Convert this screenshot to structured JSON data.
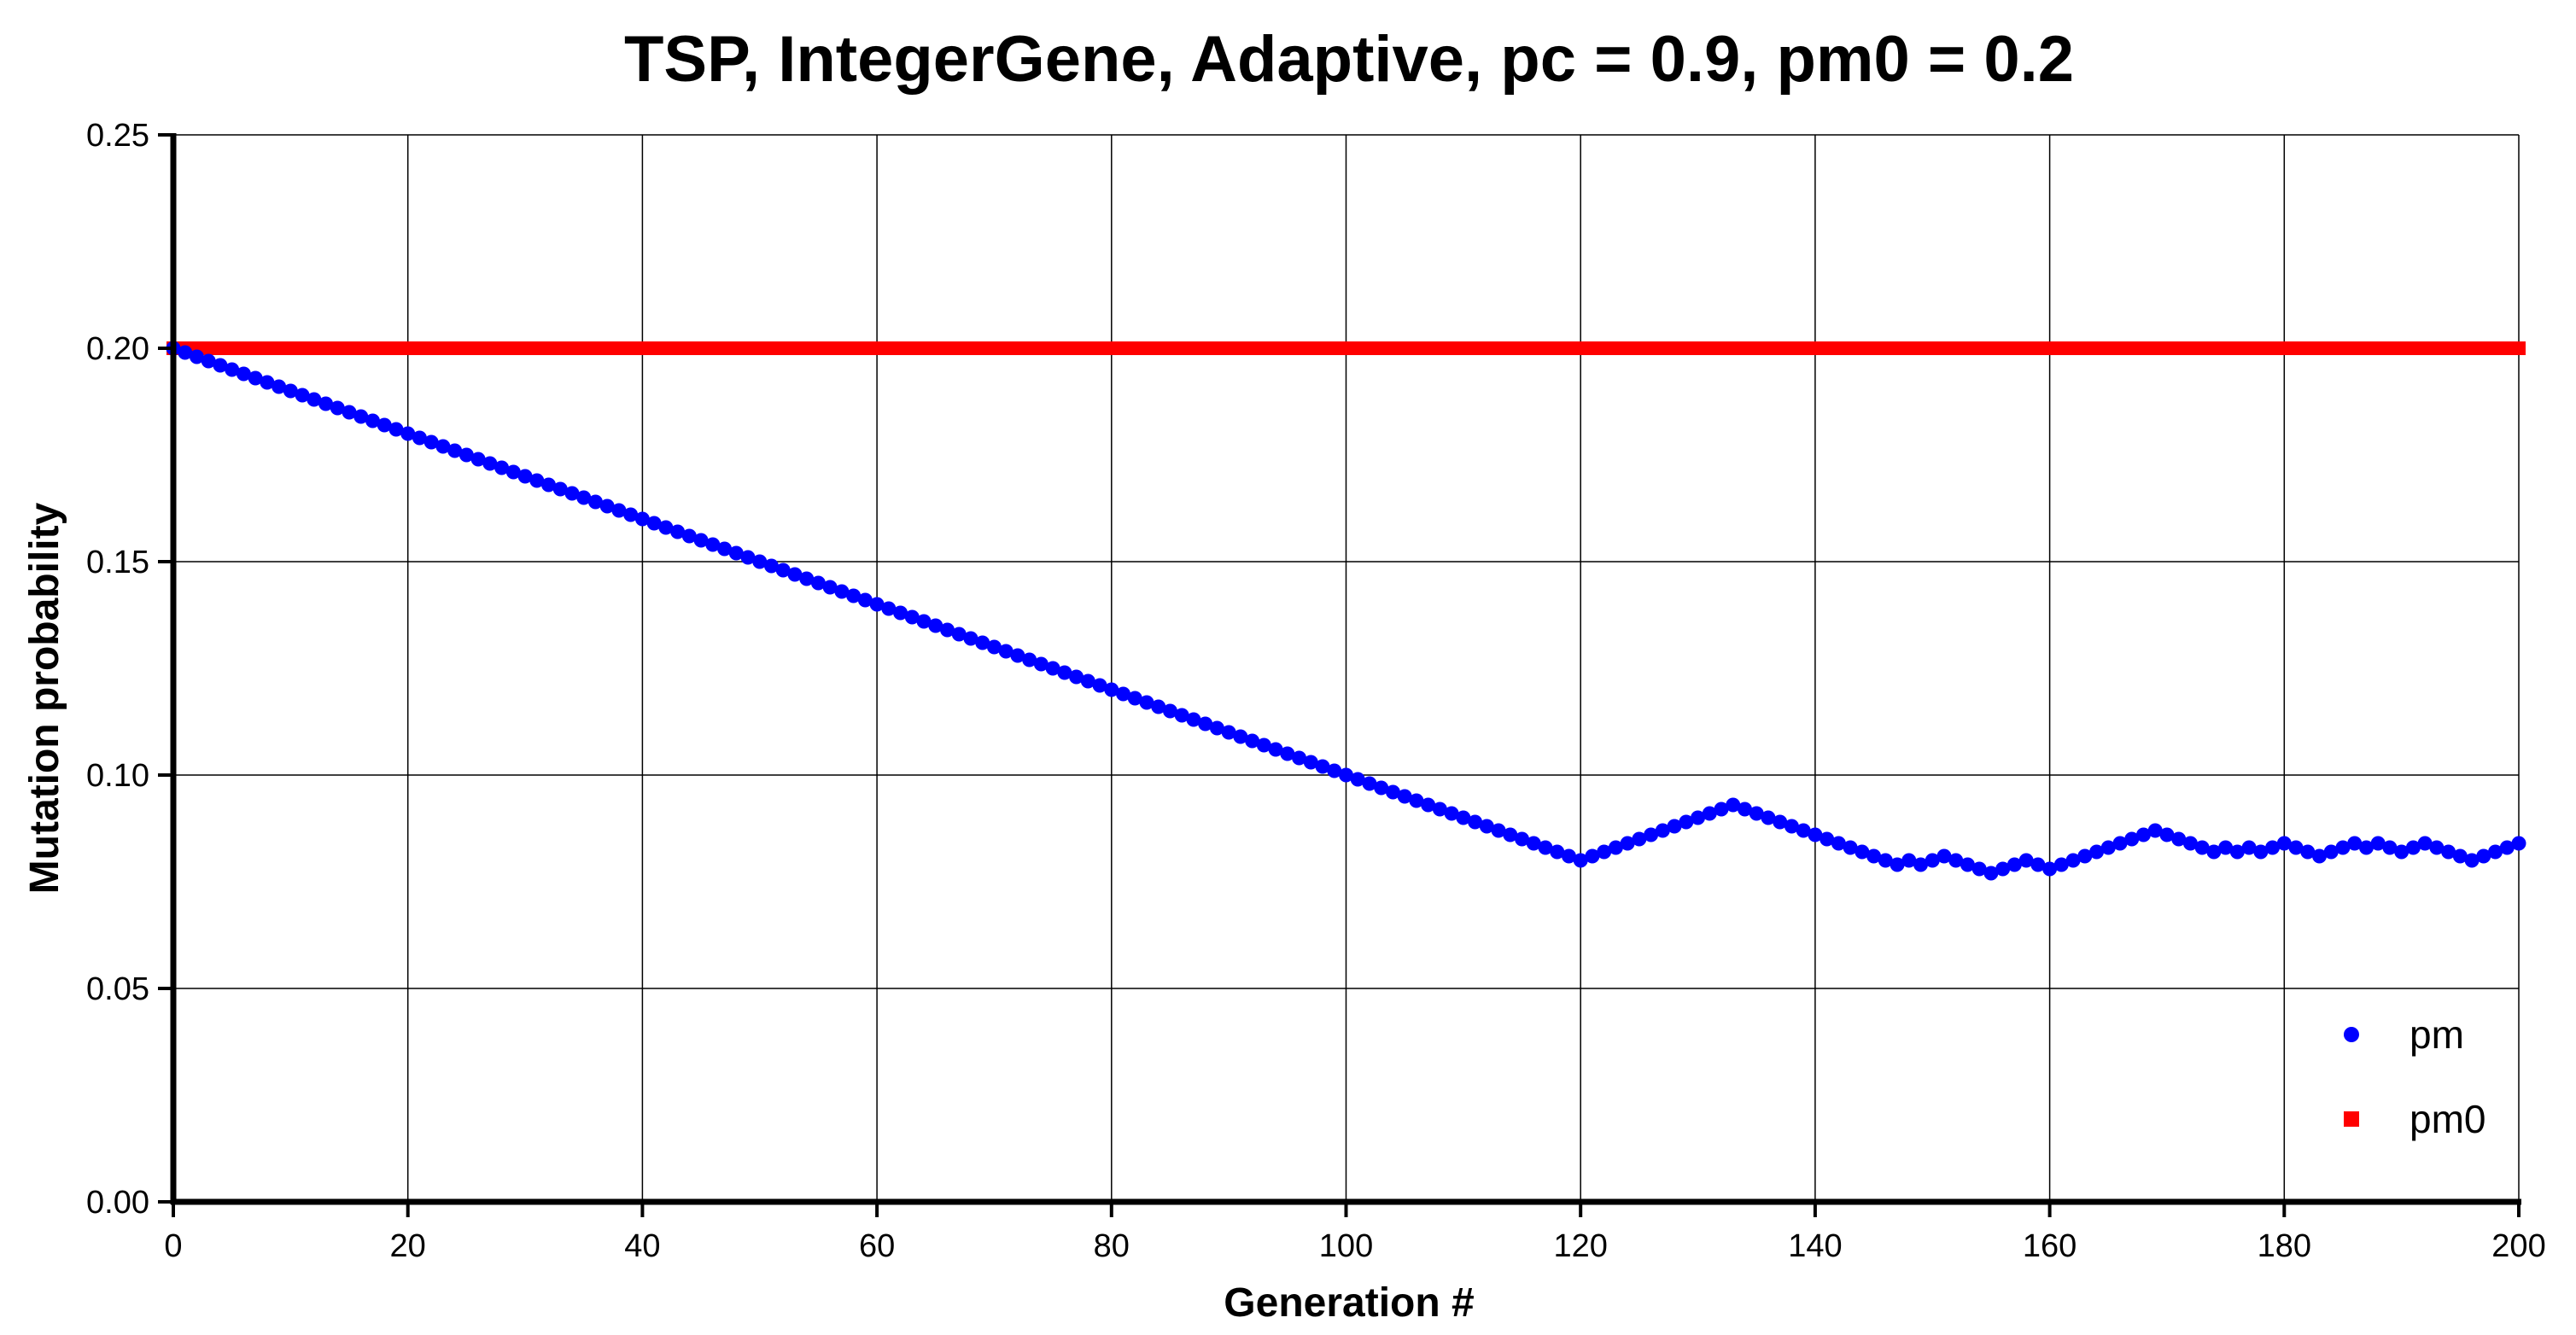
{
  "chart_data": {
    "type": "scatter",
    "title": "TSP, IntegerGene, Adaptive, pc = 0.9, pm0 = 0.2",
    "xlabel": "Generation #",
    "ylabel": "Mutation probability",
    "xlim": [
      0,
      200
    ],
    "ylim": [
      0,
      0.25
    ],
    "xticks": [
      0,
      20,
      40,
      60,
      80,
      100,
      120,
      140,
      160,
      180,
      200
    ],
    "yticks": [
      0.0,
      0.05,
      0.1,
      0.15,
      0.2,
      0.25
    ],
    "xtick_labels": [
      "0",
      "20",
      "40",
      "60",
      "80",
      "100",
      "120",
      "140",
      "160",
      "180",
      "200"
    ],
    "ytick_labels": [
      "0.00",
      "0.05",
      "0.10",
      "0.15",
      "0.20",
      "0.25"
    ],
    "grid": true,
    "legend_position": "bottom-right",
    "series": [
      {
        "name": "pm",
        "marker": "circle",
        "color": "#0000ff",
        "breakpoints": [
          [
            0,
            0.2
          ],
          [
            120,
            0.08
          ],
          [
            133,
            0.093
          ],
          [
            147,
            0.079
          ],
          [
            148,
            0.08
          ],
          [
            149,
            0.079
          ],
          [
            151,
            0.081
          ],
          [
            155,
            0.077
          ],
          [
            158,
            0.08
          ],
          [
            160,
            0.078
          ],
          [
            169,
            0.087
          ],
          [
            174,
            0.082
          ],
          [
            175,
            0.083
          ],
          [
            176,
            0.082
          ],
          [
            177,
            0.083
          ],
          [
            178,
            0.082
          ],
          [
            180,
            0.084
          ],
          [
            183,
            0.081
          ],
          [
            186,
            0.084
          ],
          [
            187,
            0.083
          ],
          [
            188,
            0.084
          ],
          [
            190,
            0.082
          ],
          [
            192,
            0.084
          ],
          [
            196,
            0.08
          ],
          [
            200,
            0.084
          ]
        ],
        "x_step": 1
      },
      {
        "name": "pm0",
        "marker": "square",
        "color": "#ff0000",
        "constant_value": 0.2,
        "x_range": [
          0,
          200
        ],
        "x_step": 1
      }
    ]
  }
}
